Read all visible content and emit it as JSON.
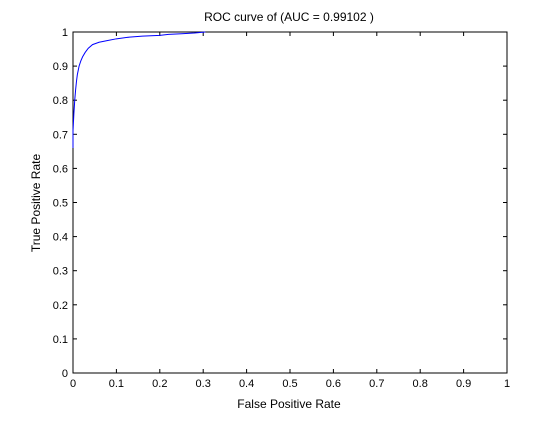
{
  "chart_data": {
    "type": "line",
    "title": "ROC curve of (AUC = 0.99102 )",
    "xlabel": "False Positive Rate",
    "ylabel": "True Positive Rate",
    "xlim": [
      0,
      1
    ],
    "ylim": [
      0,
      1
    ],
    "xticks": [
      "0",
      "0.1",
      "0.2",
      "0.3",
      "0.4",
      "0.5",
      "0.6",
      "0.7",
      "0.8",
      "0.9",
      "1"
    ],
    "yticks": [
      "0",
      "0.1",
      "0.2",
      "0.3",
      "0.4",
      "0.5",
      "0.6",
      "0.7",
      "0.8",
      "0.9",
      "1"
    ],
    "grid": false,
    "box": true,
    "series": [
      {
        "color": "#0000ff",
        "x": [
          0.0,
          0.0,
          0.002,
          0.004,
          0.006,
          0.008,
          0.01,
          0.014,
          0.018,
          0.022,
          0.028,
          0.035,
          0.045,
          0.06,
          0.08,
          0.1,
          0.13,
          0.16,
          0.2,
          0.22,
          0.25,
          0.28,
          0.305
        ],
        "y": [
          0.66,
          0.71,
          0.76,
          0.8,
          0.83,
          0.855,
          0.875,
          0.9,
          0.915,
          0.927,
          0.94,
          0.952,
          0.963,
          0.97,
          0.975,
          0.98,
          0.985,
          0.988,
          0.99,
          0.993,
          0.995,
          0.997,
          1.0
        ]
      }
    ]
  }
}
